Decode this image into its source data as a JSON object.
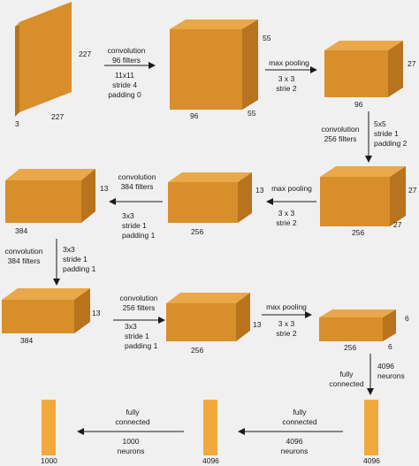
{
  "colors": {
    "background": "#f0f0f0",
    "front": "#d98e2c",
    "top": "#e9a84a",
    "side": "#b8731c",
    "bar": "#f2a93b",
    "arrow": "#1a1a1a"
  },
  "blocks": {
    "input": {
      "width": "227",
      "height": "227",
      "depth": "3"
    },
    "conv1": {
      "top": "55",
      "side": "55",
      "bottom": "96"
    },
    "pool1": {
      "side": "27",
      "bottom": "96"
    },
    "conv2": {
      "side_top": "27",
      "side_bottom": "27",
      "bottom": "256"
    },
    "pool2": {
      "side": "13",
      "bottom": "256"
    },
    "conv3": {
      "side": "13",
      "bottom": "384"
    },
    "conv4": {
      "side": "13",
      "bottom": "384"
    },
    "conv5": {
      "side": "13",
      "bottom": "256"
    },
    "pool3": {
      "side_top": "6",
      "side_bottom": "6",
      "bottom": "256"
    },
    "fc6": {
      "label": "4096"
    },
    "fc7": {
      "label": "4096"
    },
    "fc8": {
      "label": "1000"
    }
  },
  "ops": {
    "conv1": {
      "line1": "convolution",
      "line2": "96 filters",
      "line3": "11x11",
      "line4": "stride 4",
      "line5": "padding 0"
    },
    "pool1": {
      "line1": "max pooling",
      "line2": "3 x 3",
      "line3": "strie 2"
    },
    "conv2": {
      "line1": "convolution",
      "line2": "256 filters",
      "line3": "5x5",
      "line4": "stride 1",
      "line5": "padding 2"
    },
    "pool2": {
      "line1": "max pooling",
      "line2": "3 x 3",
      "line3": "strie 2"
    },
    "conv3": {
      "line1": "convolution",
      "line2": "384 filters",
      "line3": "3x3",
      "line4": "stride 1",
      "line5": "padding 1"
    },
    "conv4": {
      "line1": "convolution",
      "line2": "384 filters",
      "line3": "3x3",
      "line4": "stride 1",
      "line5": "padding 1"
    },
    "conv5": {
      "line1": "convolution",
      "line2": "256 filters",
      "line3": "3x3",
      "line4": "stride 1",
      "line5": "padding 1"
    },
    "pool3": {
      "line1": "max pooling",
      "line2": "3 x 3",
      "line3": "strie 2"
    },
    "fc6": {
      "line1": "fully",
      "line2": "connected",
      "line3": "4096",
      "line4": "neurons"
    },
    "fc7": {
      "line1": "fully",
      "line2": "connected",
      "line3": "4096",
      "line4": "neurons"
    },
    "fc8": {
      "line1": "fully",
      "line2": "connected",
      "line3": "1000",
      "line4": "neurons"
    }
  }
}
